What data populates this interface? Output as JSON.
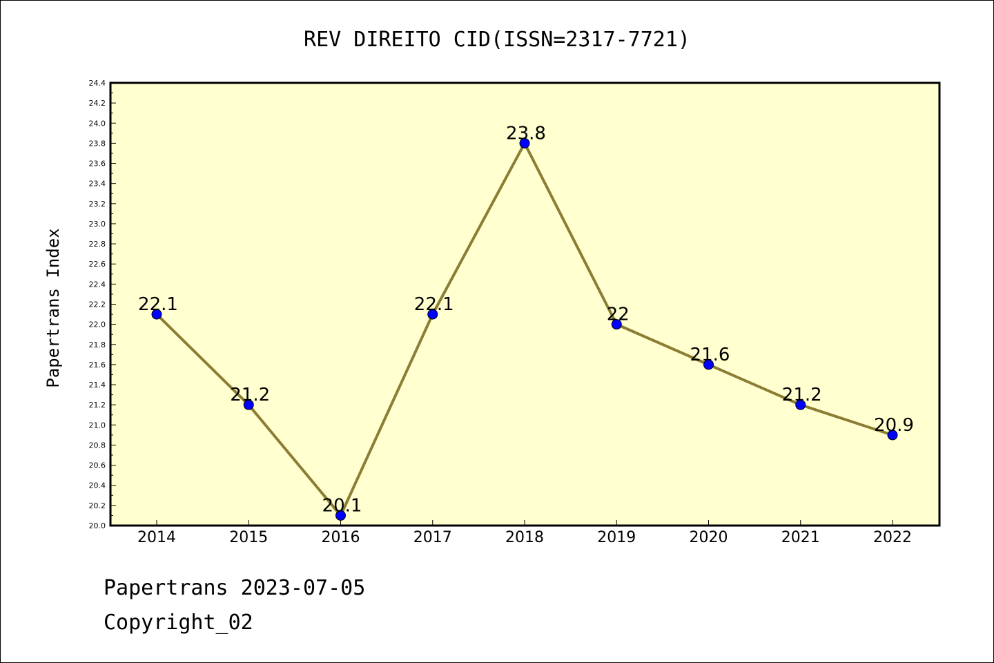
{
  "chart_data": {
    "type": "line",
    "title": "REV DIREITO CID(ISSN=2317-7721)",
    "ylabel": "Papertrans Index",
    "xlabel": "",
    "categories": [
      "2014",
      "2015",
      "2016",
      "2017",
      "2018",
      "2019",
      "2020",
      "2021",
      "2022"
    ],
    "values": [
      22.1,
      21.2,
      20.1,
      22.1,
      23.8,
      22.0,
      21.6,
      21.2,
      20.9
    ],
    "data_labels": [
      "22.1",
      "21.2",
      "20.1",
      "22.1",
      "23.8",
      "22",
      "21.6",
      "21.2",
      "20.9"
    ],
    "ylim": [
      20.0,
      24.4
    ],
    "yticks": [
      "20.0",
      "20.2",
      "20.4",
      "20.6",
      "20.8",
      "21.0",
      "21.2",
      "21.4",
      "21.6",
      "21.8",
      "22.0",
      "22.2",
      "22.4",
      "22.6",
      "22.8",
      "23.0",
      "23.2",
      "23.4",
      "23.6",
      "23.8",
      "24.0",
      "24.2",
      "24.4"
    ],
    "grid": false,
    "colors": {
      "plot_background": "#ffffd0",
      "line": "#8b7d34",
      "marker": "#0000ff",
      "axes": "#000000"
    }
  },
  "footer": {
    "line1": "Papertrans 2023-07-05",
    "line2": "Copyright_02"
  }
}
